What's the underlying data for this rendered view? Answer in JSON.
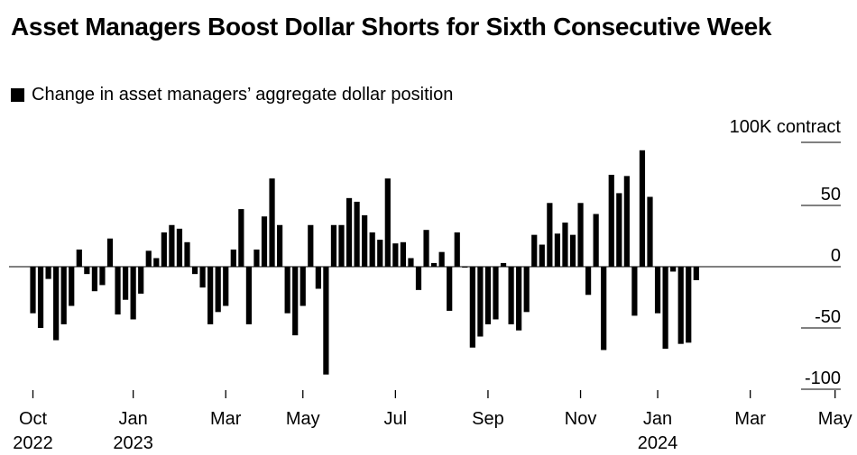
{
  "title": "Asset Managers Boost Dollar Shorts for Sixth Consecutive Week",
  "legend_label": "Change in asset managers’ aggregate dollar position",
  "chart_data": {
    "type": "bar",
    "unit_label": "100K contract",
    "ylim": [
      -100,
      100
    ],
    "y_ticks": [
      50,
      0,
      -50,
      -100
    ],
    "grid": true,
    "legend": "top-left",
    "bar_color": "#000000",
    "series": [
      {
        "name": "Change in asset managers’ aggregate dollar position",
        "values": [
          -38,
          -50,
          -10,
          -60,
          -47,
          -32,
          14,
          -6,
          -20,
          -15,
          23,
          -39,
          -27,
          -43,
          -22,
          13,
          7,
          28,
          34,
          31,
          20,
          -6,
          -17,
          -47,
          -37,
          -32,
          14,
          47,
          -47,
          14,
          41,
          72,
          34,
          -38,
          -56,
          -32,
          34,
          -18,
          -88,
          34,
          34,
          56,
          53,
          42,
          28,
          22,
          72,
          19,
          20,
          7,
          -19,
          30,
          3,
          12,
          -36,
          28,
          0,
          -66,
          -57,
          -47,
          -43,
          3,
          -47,
          -52,
          -37,
          26,
          18,
          52,
          27,
          36,
          26,
          52,
          -23,
          43,
          -68,
          75,
          60,
          74,
          -40,
          95,
          57,
          -38,
          -67,
          -4,
          -63,
          -62,
          -11
        ]
      }
    ],
    "x_ticks": [
      {
        "index": 0,
        "month": "Oct",
        "year": "2022"
      },
      {
        "index": 13,
        "month": "Jan",
        "year": "2023"
      },
      {
        "index": 25,
        "month": "Mar",
        "year": ""
      },
      {
        "index": 35,
        "month": "May",
        "year": ""
      },
      {
        "index": 47,
        "month": "Jul",
        "year": ""
      },
      {
        "index": 59,
        "month": "Sep",
        "year": ""
      },
      {
        "index": 71,
        "month": "Nov",
        "year": ""
      },
      {
        "index": 81,
        "month": "Jan",
        "year": "2024"
      },
      {
        "index": 93,
        "month": "Mar",
        "year": ""
      },
      {
        "index": 104,
        "month": "May",
        "year": ""
      }
    ]
  }
}
